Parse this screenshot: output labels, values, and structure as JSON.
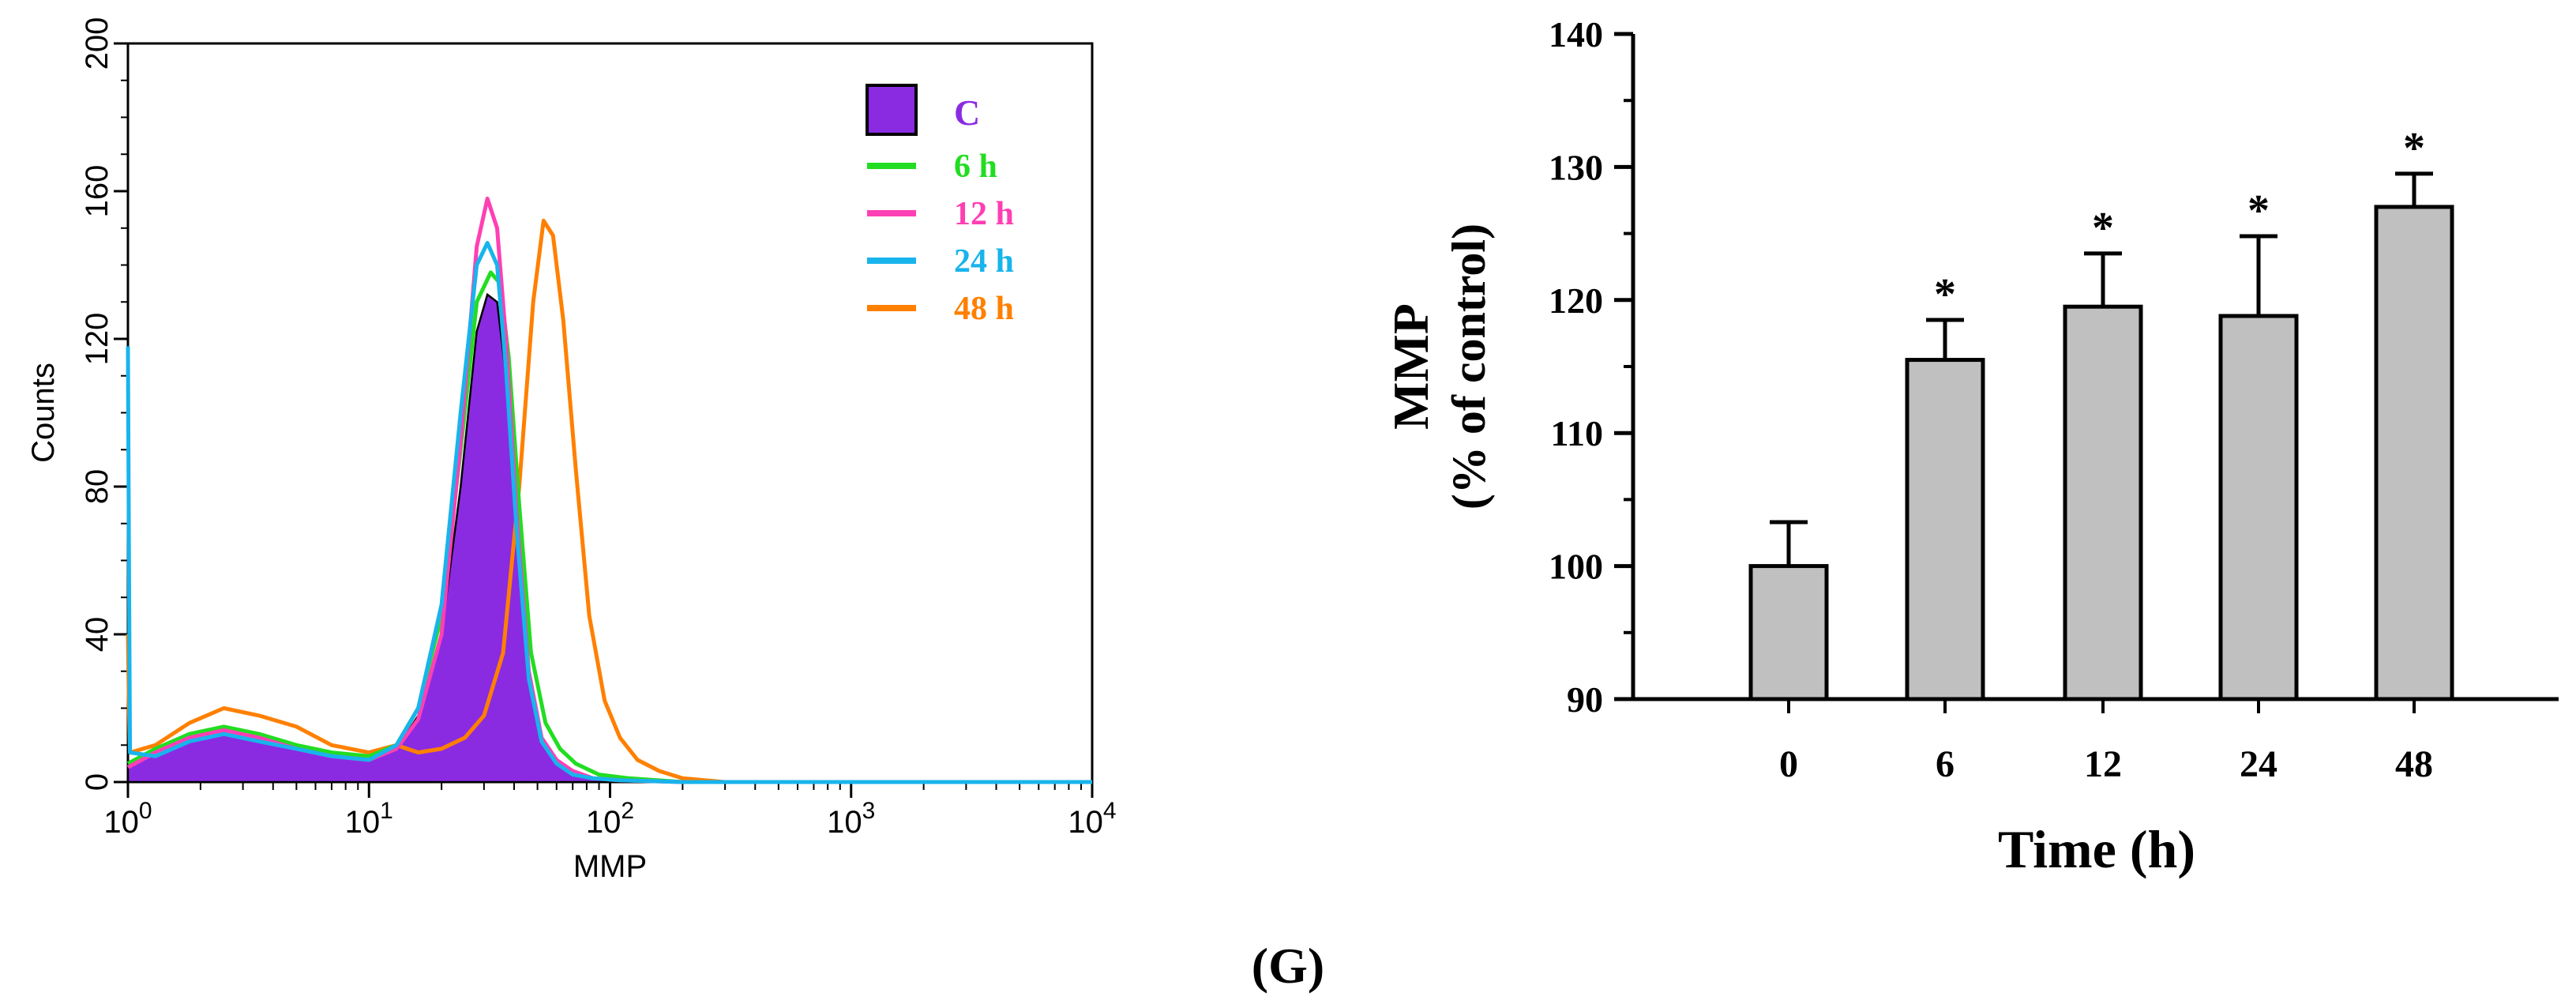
{
  "panel_label": "(G)",
  "chart_data": [
    {
      "type": "line",
      "title": "",
      "xlabel": "MMP",
      "ylabel": "Counts",
      "x_scale": "log",
      "xlim": [
        1,
        10000
      ],
      "ylim": [
        0,
        200
      ],
      "x_ticks": [
        {
          "base": "10",
          "exp": "0",
          "value": 1
        },
        {
          "base": "10",
          "exp": "1",
          "value": 10
        },
        {
          "base": "10",
          "exp": "2",
          "value": 100
        },
        {
          "base": "10",
          "exp": "3",
          "value": 1000
        },
        {
          "base": "10",
          "exp": "4",
          "value": 10000
        }
      ],
      "y_ticks": [
        "0",
        "40",
        "80",
        "120",
        "160",
        "200"
      ],
      "legend_position": "top-right",
      "series": [
        {
          "name": "C",
          "color": "#8a2be2",
          "style": "filled",
          "x": [
            1,
            1.3,
            1.8,
            2.5,
            3.5,
            5,
            7,
            10,
            13,
            16,
            20,
            24,
            28,
            31,
            34,
            37,
            41,
            46,
            52,
            60,
            70,
            85,
            110,
            200,
            10000
          ],
          "y": [
            4,
            8,
            12,
            14,
            12,
            9,
            7,
            6,
            9,
            18,
            40,
            80,
            122,
            132,
            130,
            110,
            70,
            30,
            12,
            6,
            3,
            1,
            0.5,
            0,
            0
          ]
        },
        {
          "name": "6 h",
          "color": "#22dd22",
          "style": "line",
          "x": [
            1,
            1.3,
            1.8,
            2.5,
            3.5,
            5,
            7,
            10,
            13,
            16,
            20,
            24,
            28,
            32,
            35,
            38,
            42,
            47,
            54,
            62,
            72,
            90,
            120,
            200,
            10000
          ],
          "y": [
            5,
            9,
            13,
            15,
            13,
            10,
            8,
            7,
            10,
            20,
            45,
            90,
            130,
            138,
            135,
            115,
            75,
            35,
            16,
            9,
            5,
            2,
            1,
            0,
            0
          ]
        },
        {
          "name": "12 h",
          "color": "#ff3fb4",
          "style": "line",
          "x": [
            1,
            1.3,
            1.8,
            2.5,
            3.5,
            5,
            7,
            10,
            13,
            16,
            20,
            24,
            28,
            31,
            34,
            37,
            41,
            46,
            52,
            60,
            70,
            85,
            110,
            200,
            10000
          ],
          "y": [
            4,
            8,
            12,
            14,
            12,
            9,
            7,
            6,
            9,
            17,
            40,
            92,
            145,
            158,
            150,
            120,
            72,
            30,
            12,
            6,
            3,
            1,
            0.5,
            0,
            0
          ]
        },
        {
          "name": "24 h",
          "color": "#18b4ec",
          "style": "line",
          "x": [
            1,
            1.01,
            1.02,
            1.3,
            1.8,
            2.5,
            3.5,
            5,
            7,
            10,
            13,
            16,
            20,
            24,
            28,
            31,
            34,
            37,
            41,
            46,
            52,
            60,
            70,
            85,
            110,
            200,
            10000
          ],
          "y": [
            118,
            60,
            8,
            7,
            11,
            13,
            11,
            9,
            7,
            6,
            10,
            20,
            48,
            100,
            140,
            146,
            140,
            112,
            68,
            28,
            11,
            5,
            2,
            1,
            0.5,
            0,
            0
          ]
        },
        {
          "name": "48 h",
          "color": "#ff8000",
          "style": "line",
          "x": [
            1,
            1.01,
            1.02,
            1.3,
            1.8,
            2.5,
            3.5,
            5,
            7,
            10,
            13,
            16,
            20,
            25,
            30,
            36,
            42,
            48,
            53,
            58,
            64,
            72,
            82,
            95,
            110,
            130,
            160,
            200,
            300,
            10000
          ],
          "y": [
            40,
            20,
            8,
            10,
            16,
            20,
            18,
            15,
            10,
            8,
            10,
            8,
            9,
            12,
            18,
            35,
            80,
            130,
            152,
            148,
            125,
            85,
            45,
            22,
            12,
            6,
            3,
            1,
            0,
            0
          ]
        }
      ]
    },
    {
      "type": "bar",
      "title": "",
      "xlabel": "Time (h)",
      "ylabel": "MMP",
      "ylabel2": "(% of control)",
      "ylim": [
        90,
        140
      ],
      "y_ticks": [
        "90",
        "100",
        "110",
        "120",
        "130",
        "140"
      ],
      "categories": [
        "0",
        "6",
        "12",
        "24",
        "48"
      ],
      "values": [
        100,
        115.5,
        119.5,
        118.8,
        127
      ],
      "errors": [
        3.3,
        3.0,
        4.0,
        6.0,
        2.5
      ],
      "significance": [
        "",
        "*",
        "*",
        "*",
        "*"
      ],
      "bar_color": "#c0c0c0"
    }
  ]
}
